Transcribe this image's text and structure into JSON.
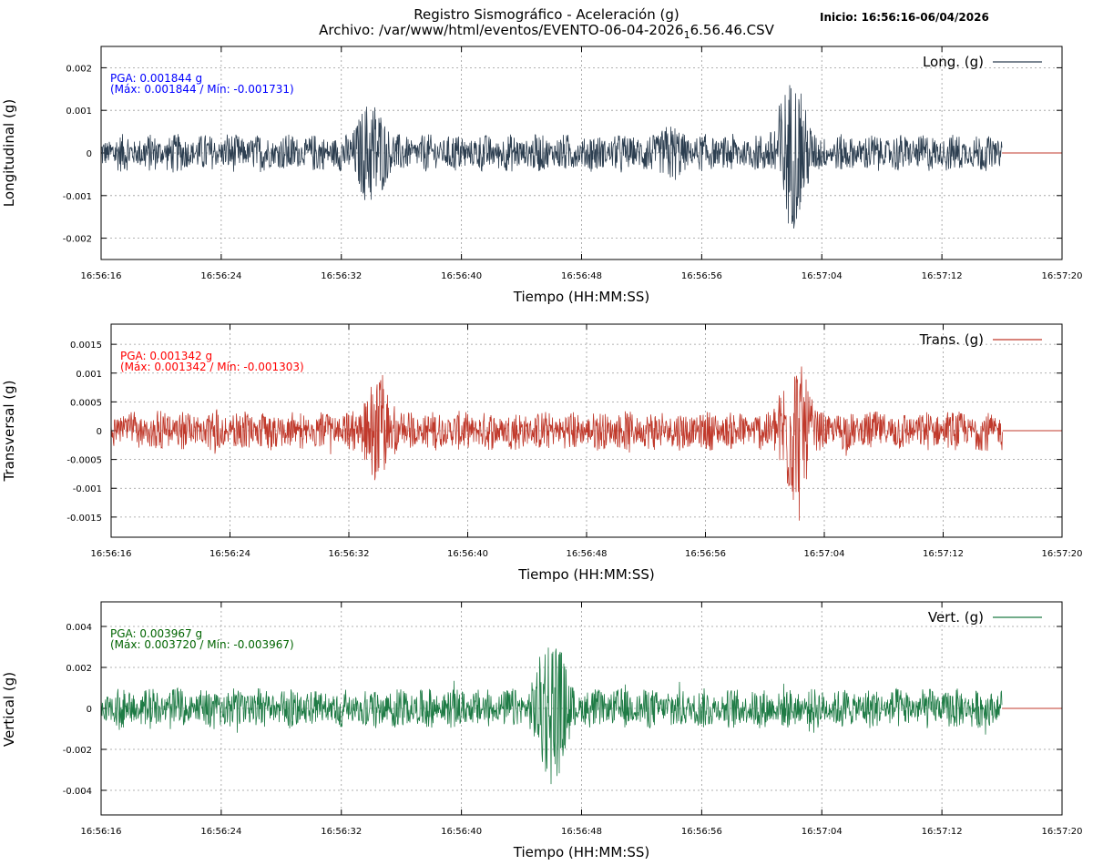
{
  "header": {
    "title": "Registro Sismográfico - Aceleración (g)",
    "file_prefix": "Archivo: /var/www/html/eventos/EVENTO-06-04-2026",
    "file_sub": "1",
    "file_suffix": "6.56.46.CSV",
    "start_label": "Inicio: 16:56:16-06/04/2026"
  },
  "chart_data": [
    {
      "type": "line",
      "xlabel": "Tiempo (HH:MM:SS)",
      "ylabel": "Longitudinal (g)",
      "x_range": [
        "16:56:16",
        "16:57:20"
      ],
      "x_ticks": [
        "16:56:16",
        "16:56:24",
        "16:56:32",
        "16:56:40",
        "16:56:48",
        "16:56:56",
        "16:57:04",
        "16:57:12",
        "16:57:20"
      ],
      "ylim": [
        -0.0025,
        0.0025
      ],
      "y_ticks": [
        0.002,
        0.001,
        0,
        -0.001,
        -0.002
      ],
      "y_tick_labels": [
        "0.002",
        "0.001",
        "0",
        "-0.001",
        "-0.002"
      ],
      "grid": true,
      "legend_position": "top-right",
      "series": [
        {
          "name": "Long. (g)",
          "color": "#2c3e50"
        }
      ],
      "trailing_line_color": "#c0392b",
      "data_end": "16:57:16",
      "background_amplitude": 0.00045,
      "bursts": [
        {
          "t": "16:56:34",
          "amplitude": 0.0013
        },
        {
          "t": "16:56:54",
          "amplitude": 0.0007
        },
        {
          "t": "16:57:02",
          "amplitude": 0.0018
        }
      ],
      "pga_label": "PGA: 0.001844 g",
      "minmax_label": "(Máx: 0.001844 / Mín: -0.001731)",
      "annotation_color": "#0000ff",
      "pga": 0.001844,
      "max": 0.001844,
      "min": -0.001731
    },
    {
      "type": "line",
      "xlabel": "Tiempo (HH:MM:SS)",
      "ylabel": "Transversal (g)",
      "x_range": [
        "16:56:16",
        "16:57:20"
      ],
      "x_ticks": [
        "16:56:16",
        "16:56:24",
        "16:56:32",
        "16:56:40",
        "16:56:48",
        "16:56:56",
        "16:57:04",
        "16:57:12",
        "16:57:20"
      ],
      "ylim": [
        -0.00185,
        0.00185
      ],
      "y_ticks": [
        0.0015,
        0.001,
        0.0005,
        0,
        -0.0005,
        -0.001,
        -0.0015
      ],
      "y_tick_labels": [
        "0.0015",
        "0.001",
        "0.0005",
        "0",
        "-0.0005",
        "-0.001",
        "-0.0015"
      ],
      "grid": true,
      "legend_position": "top-right",
      "series": [
        {
          "name": "Trans. (g)",
          "color": "#c0392b"
        }
      ],
      "trailing_line_color": "#c0392b",
      "data_end": "16:57:16",
      "background_amplitude": 0.00035,
      "bursts": [
        {
          "t": "16:56:34",
          "amplitude": 0.0009
        },
        {
          "t": "16:57:02",
          "amplitude": 0.0013
        }
      ],
      "pga_label": "PGA: 0.001342 g",
      "minmax_label": "(Máx: 0.001342 / Mín: -0.001303)",
      "annotation_color": "#ff0000",
      "pga": 0.001342,
      "max": 0.001342,
      "min": -0.001303
    },
    {
      "type": "line",
      "xlabel": "Tiempo (HH:MM:SS)",
      "ylabel": "Vertical (g)",
      "x_range": [
        "16:56:16",
        "16:57:20"
      ],
      "x_ticks": [
        "16:56:16",
        "16:56:24",
        "16:56:32",
        "16:56:40",
        "16:56:48",
        "16:56:56",
        "16:57:04",
        "16:57:12",
        "16:57:20"
      ],
      "ylim": [
        -0.0052,
        0.0052
      ],
      "y_ticks": [
        0.004,
        0.002,
        0,
        -0.002,
        -0.004
      ],
      "y_tick_labels": [
        "0.004",
        "0.002",
        "0",
        "-0.002",
        "-0.004"
      ],
      "grid": true,
      "legend_position": "top-right",
      "series": [
        {
          "name": "Vert. (g)",
          "color": "#1e7b45"
        }
      ],
      "trailing_line_color": "#c0392b",
      "data_end": "16:57:16",
      "background_amplitude": 0.001,
      "bursts": [
        {
          "t": "16:56:46",
          "amplitude": 0.0038
        }
      ],
      "pga_label": "PGA: 0.003967 g",
      "minmax_label": "(Máx: 0.003720 / Mín: -0.003967)",
      "annotation_color": "#006400",
      "pga": 0.003967,
      "max": 0.00372,
      "min": -0.003967
    }
  ]
}
